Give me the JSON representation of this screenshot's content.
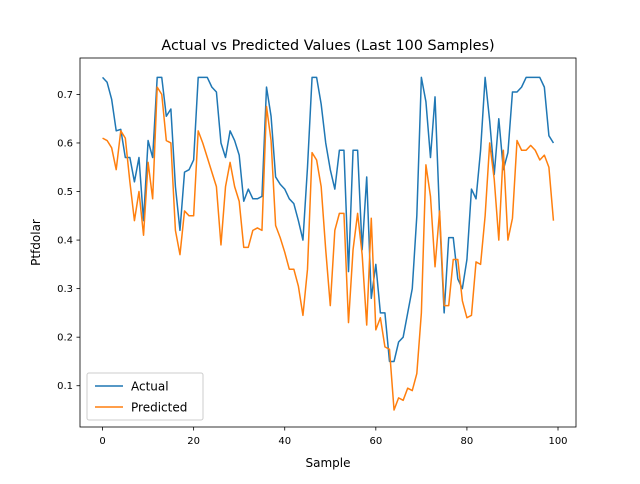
{
  "chart_data": {
    "type": "line",
    "title": "Actual vs Predicted Values (Last 100 Samples)",
    "xlabel": "Sample",
    "ylabel": "Ptfdolar",
    "xlim": [
      -4.95,
      103.95
    ],
    "ylim": [
      0.015,
      0.775
    ],
    "xticks": [
      0,
      20,
      40,
      60,
      80,
      100
    ],
    "yticks": [
      0.1,
      0.2,
      0.3,
      0.4,
      0.5,
      0.6,
      0.7
    ],
    "grid": false,
    "legend": "lower-left",
    "colors": {
      "Actual": "#1f77b4",
      "Predicted": "#ff7f0e"
    },
    "series": [
      {
        "name": "Actual",
        "x": [
          0,
          1,
          2,
          3,
          4,
          5,
          6,
          7,
          8,
          9,
          10,
          11,
          12,
          13,
          14,
          15,
          16,
          17,
          18,
          19,
          20,
          21,
          22,
          23,
          24,
          25,
          26,
          27,
          28,
          29,
          30,
          31,
          32,
          33,
          34,
          35,
          36,
          37,
          38,
          39,
          40,
          41,
          42,
          43,
          44,
          45,
          46,
          47,
          48,
          49,
          50,
          51,
          52,
          53,
          54,
          55,
          56,
          57,
          58,
          59,
          60,
          61,
          62,
          63,
          64,
          65,
          66,
          67,
          68,
          69,
          70,
          71,
          72,
          73,
          74,
          75,
          76,
          77,
          78,
          79,
          80,
          81,
          82,
          83,
          84,
          85,
          86,
          87,
          88,
          89,
          90,
          91,
          92,
          93,
          94,
          95,
          96,
          97,
          98,
          99
        ],
        "values": [
          0.735,
          0.725,
          0.69,
          0.625,
          0.628,
          0.57,
          0.57,
          0.52,
          0.57,
          0.44,
          0.605,
          0.57,
          0.735,
          0.735,
          0.655,
          0.67,
          0.51,
          0.42,
          0.54,
          0.545,
          0.565,
          0.735,
          0.735,
          0.735,
          0.715,
          0.705,
          0.6,
          0.57,
          0.625,
          0.605,
          0.575,
          0.48,
          0.505,
          0.485,
          0.485,
          0.49,
          0.715,
          0.655,
          0.53,
          0.515,
          0.505,
          0.485,
          0.475,
          0.44,
          0.4,
          0.55,
          0.735,
          0.735,
          0.68,
          0.6,
          0.545,
          0.505,
          0.585,
          0.585,
          0.335,
          0.585,
          0.585,
          0.38,
          0.53,
          0.28,
          0.35,
          0.25,
          0.25,
          0.15,
          0.15,
          0.19,
          0.2,
          0.25,
          0.3,
          0.45,
          0.735,
          0.685,
          0.57,
          0.695,
          0.45,
          0.25,
          0.405,
          0.405,
          0.32,
          0.3,
          0.36,
          0.505,
          0.485,
          0.585,
          0.735,
          0.645,
          0.535,
          0.65,
          0.545,
          0.58,
          0.705,
          0.705,
          0.715,
          0.735,
          0.735,
          0.735,
          0.735,
          0.715,
          0.615,
          0.6
        ]
      },
      {
        "name": "Predicted",
        "x": [
          0,
          1,
          2,
          3,
          4,
          5,
          6,
          7,
          8,
          9,
          10,
          11,
          12,
          13,
          14,
          15,
          16,
          17,
          18,
          19,
          20,
          21,
          22,
          23,
          24,
          25,
          26,
          27,
          28,
          29,
          30,
          31,
          32,
          33,
          34,
          35,
          36,
          37,
          38,
          39,
          40,
          41,
          42,
          43,
          44,
          45,
          46,
          47,
          48,
          49,
          50,
          51,
          52,
          53,
          54,
          55,
          56,
          57,
          58,
          59,
          60,
          61,
          62,
          63,
          64,
          65,
          66,
          67,
          68,
          69,
          70,
          71,
          72,
          73,
          74,
          75,
          76,
          77,
          78,
          79,
          80,
          81,
          82,
          83,
          84,
          85,
          86,
          87,
          88,
          89,
          90,
          91,
          92,
          93,
          94,
          95,
          96,
          97,
          98,
          99
        ],
        "values": [
          0.61,
          0.605,
          0.59,
          0.545,
          0.625,
          0.61,
          0.52,
          0.44,
          0.5,
          0.41,
          0.56,
          0.485,
          0.715,
          0.7,
          0.605,
          0.6,
          0.42,
          0.37,
          0.46,
          0.45,
          0.45,
          0.625,
          0.6,
          0.57,
          0.54,
          0.51,
          0.39,
          0.51,
          0.56,
          0.51,
          0.48,
          0.385,
          0.385,
          0.42,
          0.425,
          0.42,
          0.675,
          0.605,
          0.43,
          0.405,
          0.375,
          0.34,
          0.34,
          0.305,
          0.245,
          0.34,
          0.58,
          0.565,
          0.51,
          0.38,
          0.265,
          0.42,
          0.455,
          0.455,
          0.23,
          0.38,
          0.455,
          0.37,
          0.225,
          0.445,
          0.215,
          0.24,
          0.18,
          0.175,
          0.05,
          0.075,
          0.07,
          0.095,
          0.09,
          0.125,
          0.25,
          0.555,
          0.49,
          0.345,
          0.46,
          0.265,
          0.265,
          0.36,
          0.36,
          0.275,
          0.24,
          0.245,
          0.355,
          0.35,
          0.45,
          0.6,
          0.525,
          0.4,
          0.585,
          0.4,
          0.445,
          0.605,
          0.585,
          0.585,
          0.595,
          0.585,
          0.565,
          0.575,
          0.55,
          0.44
        ]
      }
    ]
  }
}
